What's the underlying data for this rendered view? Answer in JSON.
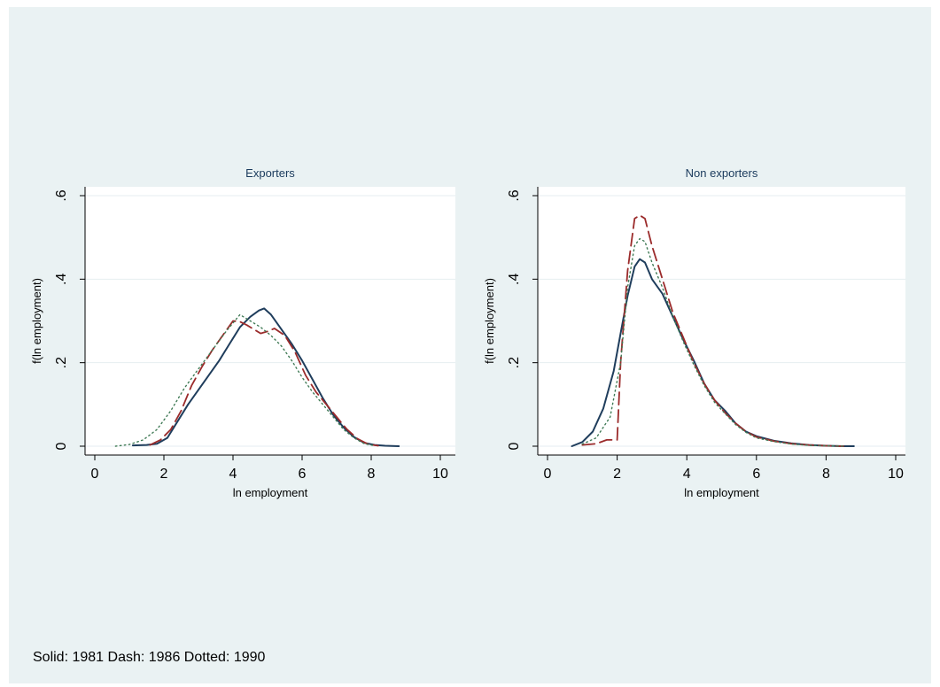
{
  "note": "Solid: 1981 Dash: 1986 Dotted: 1990",
  "colors": {
    "background": "#eaf2f3",
    "plot_area": "#ffffff",
    "title": "#1a3a5c",
    "solid": "#1f3d5c",
    "dash": "#9b2b2b",
    "dotted": "#3f7a55",
    "grid": "#e6eef1"
  },
  "chart_data": [
    {
      "type": "line",
      "title": "Exporters",
      "xlabel": "ln employment",
      "ylabel": "f(ln employment)",
      "xlim": [
        0,
        10
      ],
      "ylim": [
        0,
        0.6
      ],
      "xticks": [
        0,
        2,
        4,
        6,
        8,
        10
      ],
      "yticks": [
        0,
        0.2,
        0.4,
        0.6
      ],
      "xtick_labels": [
        "0",
        "2",
        "4",
        "6",
        "8",
        "10"
      ],
      "ytick_labels": [
        "0",
        ".2",
        ".4",
        ".6"
      ],
      "grid": true,
      "series": [
        {
          "style": "solid",
          "x": [
            1.1,
            1.5,
            1.8,
            2.1,
            2.4,
            2.7,
            3.0,
            3.3,
            3.6,
            3.9,
            4.2,
            4.5,
            4.75,
            4.9,
            5.1,
            5.4,
            5.7,
            6.0,
            6.3,
            6.6,
            6.9,
            7.2,
            7.5,
            7.8,
            8.1,
            8.4,
            8.8
          ],
          "y": [
            0.002,
            0.003,
            0.006,
            0.02,
            0.06,
            0.1,
            0.135,
            0.17,
            0.205,
            0.245,
            0.285,
            0.31,
            0.325,
            0.33,
            0.315,
            0.28,
            0.245,
            0.205,
            0.16,
            0.115,
            0.075,
            0.045,
            0.022,
            0.008,
            0.003,
            0.001,
            0.0
          ]
        },
        {
          "style": "dash",
          "x": [
            1.6,
            1.9,
            2.2,
            2.5,
            2.8,
            3.1,
            3.4,
            3.7,
            4.0,
            4.2,
            4.4,
            4.6,
            4.8,
            5.0,
            5.2,
            5.5,
            5.8,
            6.1,
            6.4,
            6.7,
            7.0,
            7.3,
            7.6,
            7.9,
            8.2
          ],
          "y": [
            0.003,
            0.015,
            0.04,
            0.085,
            0.145,
            0.19,
            0.23,
            0.265,
            0.3,
            0.298,
            0.29,
            0.28,
            0.27,
            0.275,
            0.282,
            0.265,
            0.225,
            0.17,
            0.13,
            0.1,
            0.07,
            0.04,
            0.018,
            0.005,
            0.001
          ]
        },
        {
          "style": "dotted",
          "x": [
            0.6,
            1.0,
            1.4,
            1.8,
            2.2,
            2.6,
            3.0,
            3.4,
            3.8,
            4.2,
            4.5,
            4.8,
            5.1,
            5.4,
            5.7,
            6.0,
            6.3,
            6.6,
            6.9,
            7.2,
            7.5,
            7.8,
            8.1
          ],
          "y": [
            0.0,
            0.004,
            0.015,
            0.04,
            0.085,
            0.14,
            0.185,
            0.23,
            0.275,
            0.315,
            0.3,
            0.285,
            0.265,
            0.24,
            0.205,
            0.165,
            0.13,
            0.1,
            0.07,
            0.04,
            0.02,
            0.006,
            0.001
          ]
        }
      ]
    },
    {
      "type": "line",
      "title": "Non exporters",
      "xlabel": "ln employment",
      "ylabel": "f(ln employment)",
      "xlim": [
        0,
        10
      ],
      "ylim": [
        0,
        0.6
      ],
      "xticks": [
        0,
        2,
        4,
        6,
        8,
        10
      ],
      "yticks": [
        0,
        0.2,
        0.4,
        0.6
      ],
      "xtick_labels": [
        "0",
        "2",
        "4",
        "6",
        "8",
        "10"
      ],
      "ytick_labels": [
        "0",
        ".2",
        ".4",
        ".6"
      ],
      "grid": true,
      "series": [
        {
          "style": "solid",
          "x": [
            0.7,
            1.0,
            1.3,
            1.6,
            1.9,
            2.1,
            2.3,
            2.5,
            2.65,
            2.8,
            3.0,
            3.3,
            3.6,
            3.9,
            4.2,
            4.5,
            4.8,
            5.1,
            5.4,
            5.7,
            6.0,
            6.5,
            7.0,
            7.5,
            8.0,
            8.5,
            8.8
          ],
          "y": [
            0.0,
            0.01,
            0.035,
            0.09,
            0.18,
            0.27,
            0.36,
            0.43,
            0.448,
            0.44,
            0.4,
            0.365,
            0.31,
            0.255,
            0.205,
            0.15,
            0.11,
            0.085,
            0.055,
            0.035,
            0.024,
            0.013,
            0.007,
            0.003,
            0.001,
            0.0,
            0.0
          ]
        },
        {
          "style": "dash",
          "x": [
            1.0,
            1.4,
            1.7,
            2.0,
            2.1,
            2.3,
            2.5,
            2.65,
            2.8,
            3.0,
            3.3,
            3.6,
            3.9,
            4.2,
            4.5,
            4.8,
            5.1,
            5.4,
            5.7,
            6.0,
            6.5,
            7.0,
            7.5,
            8.0,
            8.5
          ],
          "y": [
            0.003,
            0.006,
            0.015,
            0.015,
            0.2,
            0.42,
            0.545,
            0.553,
            0.545,
            0.48,
            0.4,
            0.32,
            0.26,
            0.2,
            0.15,
            0.11,
            0.08,
            0.055,
            0.035,
            0.022,
            0.012,
            0.006,
            0.003,
            0.001,
            0.0
          ]
        },
        {
          "style": "dotted",
          "x": [
            1.0,
            1.4,
            1.8,
            2.1,
            2.3,
            2.5,
            2.65,
            2.8,
            3.0,
            3.3,
            3.6,
            3.9,
            4.2,
            4.5,
            4.8,
            5.1,
            5.4,
            5.7,
            6.0,
            6.5,
            7.0,
            7.5,
            8.0,
            8.5
          ],
          "y": [
            0.005,
            0.02,
            0.07,
            0.2,
            0.38,
            0.48,
            0.497,
            0.49,
            0.44,
            0.38,
            0.31,
            0.25,
            0.195,
            0.145,
            0.105,
            0.078,
            0.052,
            0.033,
            0.02,
            0.011,
            0.005,
            0.002,
            0.001,
            0.0
          ]
        }
      ]
    }
  ]
}
